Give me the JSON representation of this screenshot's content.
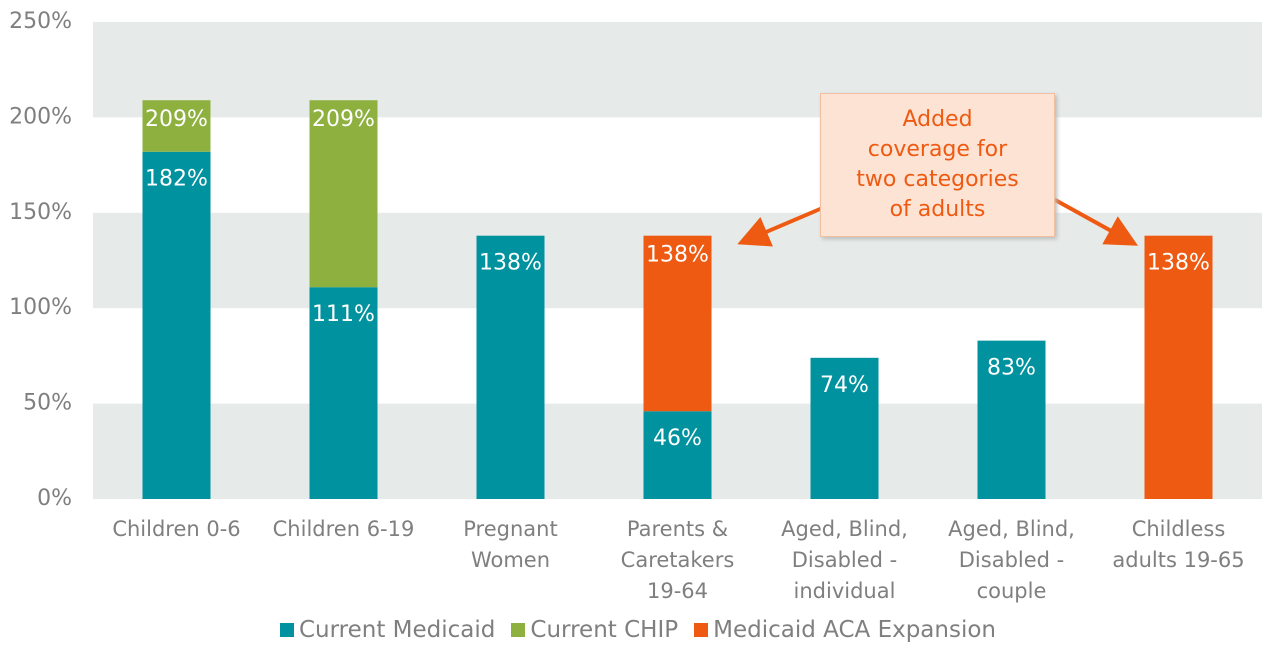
{
  "chart_data": {
    "type": "stacked_bar",
    "categories": [
      "Children 0-6",
      "Children 6-19",
      "Pregnant\nWomen",
      "Parents &\nCaretakers\n19-64",
      "Aged, Blind,\nDisabled -\nindividual",
      "Aged, Blind,\nDisabled -\ncouple",
      "Childless\nadults 19-65"
    ],
    "series": [
      {
        "name": "Current Medicaid",
        "color": "#00929f",
        "values": [
          182,
          111,
          138,
          46,
          74,
          83,
          null
        ],
        "value_labels": [
          "182%",
          "111%",
          "138%",
          "46%",
          "74%",
          "83%",
          null
        ]
      },
      {
        "name": "Current CHIP",
        "color": "#8db03f",
        "values": [
          27,
          98,
          null,
          null,
          null,
          null,
          null
        ]
      },
      {
        "name": "Medicaid ACA Expansion",
        "color": "#ee5a12",
        "values": [
          null,
          null,
          null,
          92,
          null,
          null,
          138
        ],
        "value_labels": [
          null,
          null,
          null,
          null,
          null,
          null,
          "138%"
        ]
      }
    ],
    "totals": {
      "values": [
        209,
        209,
        null,
        138,
        null,
        null,
        null
      ],
      "value_labels": [
        "209%",
        "209%",
        null,
        "138%",
        null,
        null,
        null
      ]
    },
    "ylim": [
      0,
      250
    ],
    "yticks": [
      {
        "value": 0,
        "label": "0%"
      },
      {
        "value": 50,
        "label": "50%"
      },
      {
        "value": 100,
        "label": "100%"
      },
      {
        "value": 150,
        "label": "150%"
      },
      {
        "value": 200,
        "label": "200%"
      },
      {
        "value": 250,
        "label": "250%"
      }
    ],
    "grid": "banded",
    "annotation": "Added\ncoverage for\ntwo categories\nof adults",
    "legend": "bottom"
  }
}
